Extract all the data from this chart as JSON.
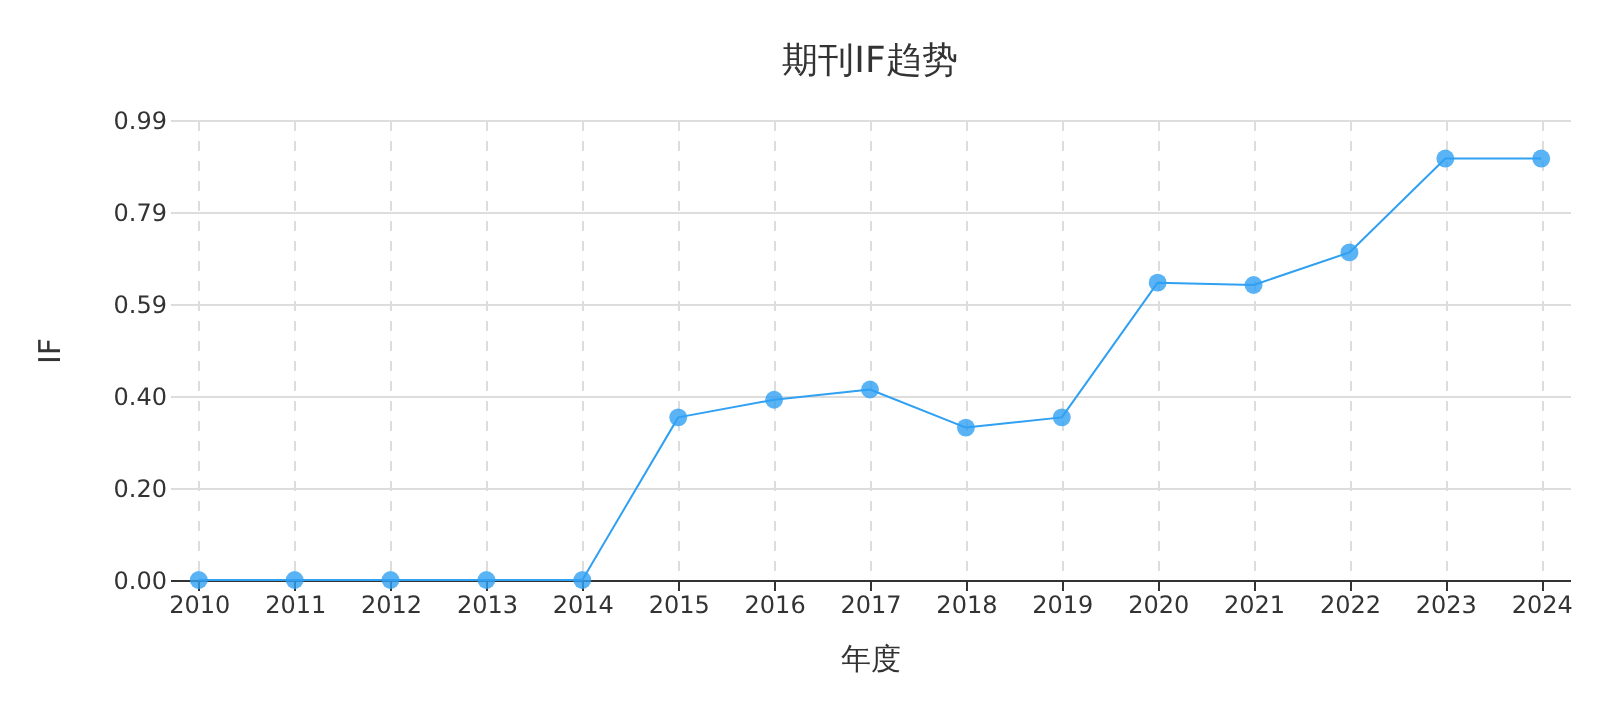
{
  "chart_data": {
    "type": "line",
    "title": "期刊IF趋势",
    "xlabel": "年度",
    "ylabel": "IF",
    "categories": [
      "2010",
      "2011",
      "2012",
      "2013",
      "2014",
      "2015",
      "2016",
      "2017",
      "2018",
      "2019",
      "2020",
      "2021",
      "2022",
      "2023",
      "2024"
    ],
    "series": [
      {
        "color": "#2fa0f2",
        "values": [
          0,
          0,
          0,
          0,
          0,
          0.35,
          0.388,
          0.41,
          0.328,
          0.35,
          0.64,
          0.635,
          0.705,
          0.907,
          0.907
        ]
      }
    ],
    "ylim": [
      0,
      0.99
    ],
    "yticks": [
      {
        "value": 0,
        "label": "0.00"
      },
      {
        "value": 0.198,
        "label": "0.20"
      },
      {
        "value": 0.396,
        "label": "0.40"
      },
      {
        "value": 0.594,
        "label": "0.59"
      },
      {
        "value": 0.792,
        "label": "0.79"
      },
      {
        "value": 0.99,
        "label": "0.99"
      }
    ],
    "grid": true,
    "marker": "circle",
    "line_style": "solid"
  }
}
